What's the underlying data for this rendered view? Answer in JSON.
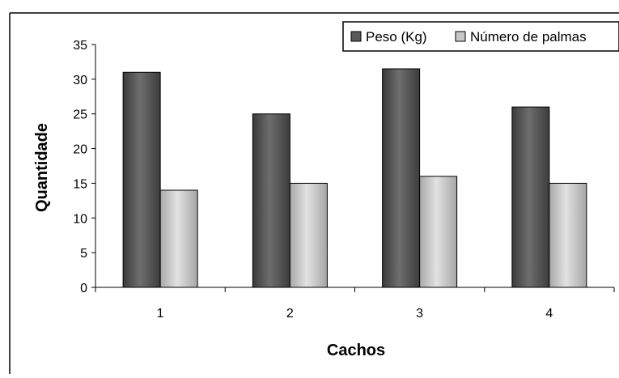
{
  "chart_data": {
    "type": "bar",
    "title": "",
    "xlabel": "Cachos",
    "ylabel": "Quantidade",
    "categories": [
      "1",
      "2",
      "3",
      "4"
    ],
    "series": [
      {
        "name": "Peso (Kg)",
        "values": [
          31,
          25,
          31.5,
          26
        ],
        "color": "#5a5a5a"
      },
      {
        "name": "Número de palmas",
        "values": [
          14,
          15,
          16,
          15
        ],
        "color": "#c8c8c8"
      }
    ],
    "ylim": [
      0,
      35
    ],
    "yticks": [
      "0",
      "5",
      "10",
      "15",
      "20",
      "25",
      "30",
      "35"
    ],
    "grid": false,
    "legend_position": "top-right"
  }
}
